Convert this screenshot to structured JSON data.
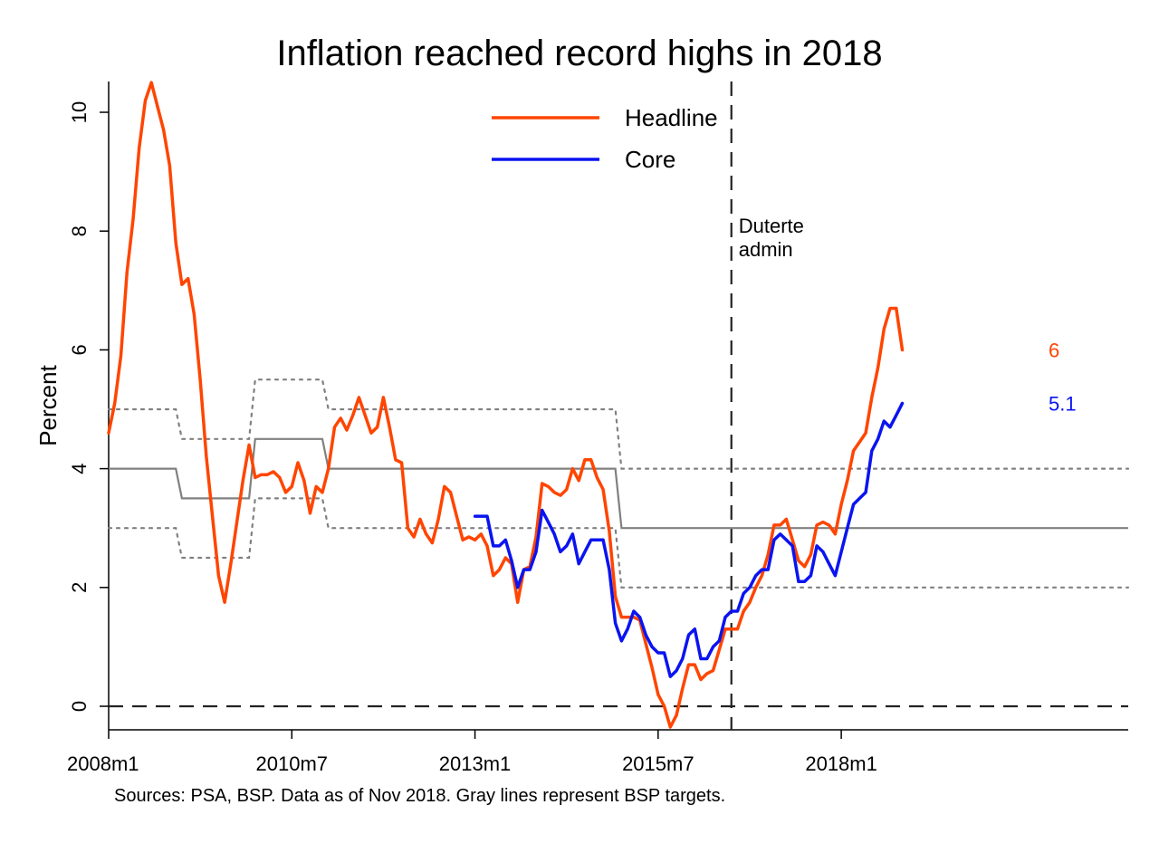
{
  "chart_data": {
    "type": "line",
    "title": "Inflation reached record highs in 2018",
    "ylabel": "Percent",
    "xlabel": "",
    "source_note": "Sources: PSA, BSP. Data as of Nov 2018. Gray lines represent BSP targets.",
    "x_range": [
      "2008m1",
      "2021m12"
    ],
    "ylim": [
      -0.4,
      10.5
    ],
    "y_ticks": [
      0,
      2,
      4,
      6,
      8,
      10
    ],
    "x_ticks": [
      "2008m1",
      "2010m7",
      "2013m1",
      "2015m7",
      "2018m1"
    ],
    "grid": false,
    "legend_position": "top-center",
    "reference_line": {
      "y": 0,
      "style": "dashed"
    },
    "annotation": {
      "x": "2016m7",
      "lines": [
        "Duterte",
        "admin"
      ],
      "style": "dashed-vertical"
    },
    "series": [
      {
        "name": "Headline",
        "color": "#ff4500",
        "end_label": "6",
        "points": [
          [
            "2008m1",
            4.6
          ],
          [
            "2008m2",
            5.1
          ],
          [
            "2008m3",
            5.9
          ],
          [
            "2008m4",
            7.3
          ],
          [
            "2008m5",
            8.2
          ],
          [
            "2008m6",
            9.4
          ],
          [
            "2008m7",
            10.2
          ],
          [
            "2008m8",
            10.5
          ],
          [
            "2008m9",
            10.1
          ],
          [
            "2008m10",
            9.7
          ],
          [
            "2008m11",
            9.1
          ],
          [
            "2008m12",
            7.8
          ],
          [
            "2009m1",
            7.1
          ],
          [
            "2009m2",
            7.2
          ],
          [
            "2009m3",
            6.6
          ],
          [
            "2009m4",
            5.5
          ],
          [
            "2009m5",
            4.2
          ],
          [
            "2009m6",
            3.2
          ],
          [
            "2009m7",
            2.2
          ],
          [
            "2009m8",
            1.75
          ],
          [
            "2009m9",
            2.4
          ],
          [
            "2009m10",
            3.1
          ],
          [
            "2009m11",
            3.8
          ],
          [
            "2009m12",
            4.4
          ],
          [
            "2010m1",
            3.85
          ],
          [
            "2010m2",
            3.9
          ],
          [
            "2010m3",
            3.9
          ],
          [
            "2010m4",
            3.95
          ],
          [
            "2010m5",
            3.85
          ],
          [
            "2010m6",
            3.6
          ],
          [
            "2010m7",
            3.7
          ],
          [
            "2010m8",
            4.1
          ],
          [
            "2010m9",
            3.8
          ],
          [
            "2010m10",
            3.25
          ],
          [
            "2010m11",
            3.7
          ],
          [
            "2010m12",
            3.6
          ],
          [
            "2011m1",
            4.0
          ],
          [
            "2011m2",
            4.7
          ],
          [
            "2011m3",
            4.85
          ],
          [
            "2011m4",
            4.65
          ],
          [
            "2011m5",
            4.9
          ],
          [
            "2011m6",
            5.2
          ],
          [
            "2011m7",
            4.9
          ],
          [
            "2011m8",
            4.6
          ],
          [
            "2011m9",
            4.7
          ],
          [
            "2011m10",
            5.2
          ],
          [
            "2011m11",
            4.7
          ],
          [
            "2011m12",
            4.15
          ],
          [
            "2012m1",
            4.1
          ],
          [
            "2012m2",
            3.0
          ],
          [
            "2012m3",
            2.85
          ],
          [
            "2012m4",
            3.15
          ],
          [
            "2012m5",
            2.9
          ],
          [
            "2012m6",
            2.75
          ],
          [
            "2012m7",
            3.15
          ],
          [
            "2012m8",
            3.7
          ],
          [
            "2012m9",
            3.6
          ],
          [
            "2012m10",
            3.2
          ],
          [
            "2012m11",
            2.8
          ],
          [
            "2012m12",
            2.85
          ],
          [
            "2013m1",
            2.8
          ],
          [
            "2013m2",
            2.9
          ],
          [
            "2013m3",
            2.7
          ],
          [
            "2013m4",
            2.2
          ],
          [
            "2013m5",
            2.3
          ],
          [
            "2013m6",
            2.5
          ],
          [
            "2013m7",
            2.4
          ],
          [
            "2013m8",
            1.75
          ],
          [
            "2013m9",
            2.3
          ],
          [
            "2013m10",
            2.35
          ],
          [
            "2013m11",
            2.85
          ],
          [
            "2013m12",
            3.75
          ],
          [
            "2014m1",
            3.7
          ],
          [
            "2014m2",
            3.6
          ],
          [
            "2014m3",
            3.55
          ],
          [
            "2014m4",
            3.65
          ],
          [
            "2014m5",
            4.0
          ],
          [
            "2014m6",
            3.8
          ],
          [
            "2014m7",
            4.15
          ],
          [
            "2014m8",
            4.15
          ],
          [
            "2014m9",
            3.85
          ],
          [
            "2014m10",
            3.65
          ],
          [
            "2014m11",
            2.95
          ],
          [
            "2014m12",
            1.85
          ],
          [
            "2015m1",
            1.5
          ],
          [
            "2015m2",
            1.5
          ],
          [
            "2015m3",
            1.5
          ],
          [
            "2015m4",
            1.45
          ],
          [
            "2015m5",
            1.05
          ],
          [
            "2015m6",
            0.65
          ],
          [
            "2015m7",
            0.2
          ],
          [
            "2015m8",
            0.0
          ],
          [
            "2015m9",
            -0.35
          ],
          [
            "2015m10",
            -0.15
          ],
          [
            "2015m11",
            0.3
          ],
          [
            "2015m12",
            0.7
          ],
          [
            "2016m1",
            0.7
          ],
          [
            "2016m2",
            0.45
          ],
          [
            "2016m3",
            0.55
          ],
          [
            "2016m4",
            0.6
          ],
          [
            "2016m5",
            0.95
          ],
          [
            "2016m6",
            1.3
          ],
          [
            "2016m7",
            1.3
          ],
          [
            "2016m8",
            1.3
          ],
          [
            "2016m9",
            1.6
          ],
          [
            "2016m10",
            1.75
          ],
          [
            "2016m11",
            2.0
          ],
          [
            "2016m12",
            2.2
          ],
          [
            "2017m1",
            2.55
          ],
          [
            "2017m2",
            3.05
          ],
          [
            "2017m3",
            3.05
          ],
          [
            "2017m4",
            3.15
          ],
          [
            "2017m5",
            2.8
          ],
          [
            "2017m6",
            2.45
          ],
          [
            "2017m7",
            2.35
          ],
          [
            "2017m8",
            2.55
          ],
          [
            "2017m9",
            3.05
          ],
          [
            "2017m10",
            3.1
          ],
          [
            "2017m11",
            3.05
          ],
          [
            "2017m12",
            2.9
          ],
          [
            "2018m1",
            3.4
          ],
          [
            "2018m2",
            3.8
          ],
          [
            "2018m3",
            4.3
          ],
          [
            "2018m4",
            4.45
          ],
          [
            "2018m5",
            4.6
          ],
          [
            "2018m6",
            5.2
          ],
          [
            "2018m7",
            5.7
          ],
          [
            "2018m8",
            6.35
          ],
          [
            "2018m9",
            6.7
          ],
          [
            "2018m10",
            6.7
          ],
          [
            "2018m11",
            6.0
          ]
        ]
      },
      {
        "name": "Core",
        "color": "#0a14f0",
        "end_label": "5.1",
        "points": [
          [
            "2013m1",
            3.2
          ],
          [
            "2013m2",
            3.2
          ],
          [
            "2013m3",
            3.2
          ],
          [
            "2013m4",
            2.7
          ],
          [
            "2013m5",
            2.7
          ],
          [
            "2013m6",
            2.8
          ],
          [
            "2013m7",
            2.45
          ],
          [
            "2013m8",
            2.0
          ],
          [
            "2013m9",
            2.3
          ],
          [
            "2013m10",
            2.3
          ],
          [
            "2013m11",
            2.6
          ],
          [
            "2013m12",
            3.3
          ],
          [
            "2014m1",
            3.1
          ],
          [
            "2014m2",
            2.9
          ],
          [
            "2014m3",
            2.6
          ],
          [
            "2014m4",
            2.7
          ],
          [
            "2014m5",
            2.9
          ],
          [
            "2014m6",
            2.4
          ],
          [
            "2014m7",
            2.6
          ],
          [
            "2014m8",
            2.8
          ],
          [
            "2014m9",
            2.8
          ],
          [
            "2014m10",
            2.8
          ],
          [
            "2014m11",
            2.3
          ],
          [
            "2014m12",
            1.4
          ],
          [
            "2015m1",
            1.1
          ],
          [
            "2015m2",
            1.3
          ],
          [
            "2015m3",
            1.6
          ],
          [
            "2015m4",
            1.5
          ],
          [
            "2015m5",
            1.2
          ],
          [
            "2015m6",
            1.0
          ],
          [
            "2015m7",
            0.9
          ],
          [
            "2015m8",
            0.9
          ],
          [
            "2015m9",
            0.5
          ],
          [
            "2015m10",
            0.6
          ],
          [
            "2015m11",
            0.8
          ],
          [
            "2015m12",
            1.2
          ],
          [
            "2016m1",
            1.3
          ],
          [
            "2016m2",
            0.8
          ],
          [
            "2016m3",
            0.8
          ],
          [
            "2016m4",
            1.0
          ],
          [
            "2016m5",
            1.1
          ],
          [
            "2016m6",
            1.5
          ],
          [
            "2016m7",
            1.6
          ],
          [
            "2016m8",
            1.6
          ],
          [
            "2016m9",
            1.9
          ],
          [
            "2016m10",
            2.0
          ],
          [
            "2016m11",
            2.2
          ],
          [
            "2016m12",
            2.3
          ],
          [
            "2017m1",
            2.3
          ],
          [
            "2017m2",
            2.8
          ],
          [
            "2017m3",
            2.9
          ],
          [
            "2017m4",
            2.8
          ],
          [
            "2017m5",
            2.7
          ],
          [
            "2017m6",
            2.1
          ],
          [
            "2017m7",
            2.1
          ],
          [
            "2017m8",
            2.2
          ],
          [
            "2017m9",
            2.7
          ],
          [
            "2017m10",
            2.6
          ],
          [
            "2017m11",
            2.4
          ],
          [
            "2017m12",
            2.2
          ],
          [
            "2018m1",
            2.6
          ],
          [
            "2018m2",
            3.0
          ],
          [
            "2018m3",
            3.4
          ],
          [
            "2018m4",
            3.5
          ],
          [
            "2018m5",
            3.6
          ],
          [
            "2018m6",
            4.3
          ],
          [
            "2018m7",
            4.5
          ],
          [
            "2018m8",
            4.8
          ],
          [
            "2018m9",
            4.7
          ],
          [
            "2018m10",
            4.9
          ],
          [
            "2018m11",
            5.1
          ]
        ]
      }
    ],
    "targets": {
      "color": "#808080",
      "midpoint": [
        [
          "2008m1",
          4.0
        ],
        [
          "2008m12",
          4.0
        ],
        [
          "2009m1",
          3.5
        ],
        [
          "2009m12",
          3.5
        ],
        [
          "2010m1",
          4.5
        ],
        [
          "2010m12",
          4.5
        ],
        [
          "2011m1",
          4.0
        ],
        [
          "2014m12",
          4.0
        ],
        [
          "2015m1",
          3.0
        ],
        [
          "2021m12",
          3.0
        ]
      ],
      "upper": [
        [
          "2008m1",
          5.0
        ],
        [
          "2008m12",
          5.0
        ],
        [
          "2009m1",
          4.5
        ],
        [
          "2009m12",
          4.5
        ],
        [
          "2010m1",
          5.5
        ],
        [
          "2010m12",
          5.5
        ],
        [
          "2011m1",
          5.0
        ],
        [
          "2014m12",
          5.0
        ],
        [
          "2015m1",
          4.0
        ],
        [
          "2021m12",
          4.0
        ]
      ],
      "lower": [
        [
          "2008m1",
          3.0
        ],
        [
          "2008m12",
          3.0
        ],
        [
          "2009m1",
          2.5
        ],
        [
          "2009m12",
          2.5
        ],
        [
          "2010m1",
          3.5
        ],
        [
          "2010m12",
          3.5
        ],
        [
          "2011m1",
          3.0
        ],
        [
          "2014m12",
          3.0
        ],
        [
          "2015m1",
          2.0
        ],
        [
          "2021m12",
          2.0
        ]
      ]
    }
  }
}
